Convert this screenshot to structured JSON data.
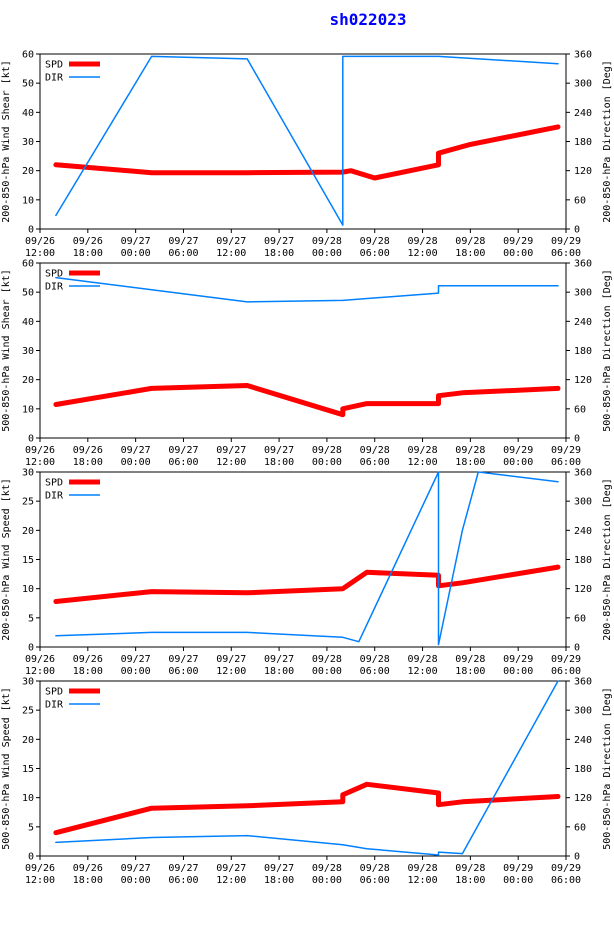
{
  "page": {
    "title": "sh022023"
  },
  "colors": {
    "spd": "#ff0000",
    "dir": "#0080ff",
    "axis": "#000000",
    "title": "#0000ff"
  },
  "chart_data": [
    {
      "type": "line",
      "name": "200-850hPa shear",
      "ylabel_left": "200-850-hPa Wind Shear [kt]",
      "ylabel_right": "200-850-hPa Direction [Deg]",
      "ylim_left": [
        0,
        60
      ],
      "ylim_right": [
        0,
        360
      ],
      "yticks_left": [
        0,
        10,
        20,
        30,
        40,
        50,
        60
      ],
      "yticks_right": [
        0,
        60,
        120,
        180,
        240,
        300,
        360
      ],
      "xlim": [
        0,
        66
      ],
      "x_ticks": [
        0,
        6,
        12,
        18,
        24,
        30,
        36,
        42,
        48,
        54,
        60,
        66
      ],
      "x_ticklabels_top": [
        "09/26",
        "09/26",
        "09/27",
        "09/27",
        "09/27",
        "09/27",
        "09/28",
        "09/28",
        "09/28",
        "09/28",
        "09/29",
        "09/29"
      ],
      "x_ticklabels_bottom": [
        "12:00",
        "18:00",
        "00:00",
        "06:00",
        "12:00",
        "18:00",
        "00:00",
        "06:00",
        "12:00",
        "18:00",
        "00:00",
        "06:00"
      ],
      "legend": [
        "SPD",
        "DIR"
      ],
      "series": [
        {
          "name": "SPD",
          "axis": "left",
          "x": [
            2,
            14,
            26,
            38,
            39,
            42,
            50,
            50,
            54,
            65
          ],
          "values": [
            22,
            19.3,
            19.3,
            19.5,
            20,
            17.5,
            22,
            26,
            29,
            35
          ]
        },
        {
          "name": "DIR",
          "axis": "right",
          "x": [
            2,
            14,
            26,
            38,
            38,
            50,
            65
          ],
          "values": [
            28,
            355,
            350,
            8,
            355,
            355,
            340
          ]
        }
      ]
    },
    {
      "type": "line",
      "name": "500-850hPa shear",
      "ylabel_left": "500-850-hPa Wind Shear [kt]",
      "ylabel_right": "500-850-hPa Direction [Deg]",
      "ylim_left": [
        0,
        60
      ],
      "ylim_right": [
        0,
        360
      ],
      "yticks_left": [
        0,
        10,
        20,
        30,
        40,
        50,
        60
      ],
      "yticks_right": [
        0,
        60,
        120,
        180,
        240,
        300,
        360
      ],
      "xlim": [
        0,
        66
      ],
      "x_ticks": [
        0,
        6,
        12,
        18,
        24,
        30,
        36,
        42,
        48,
        54,
        60,
        66
      ],
      "x_ticklabels_top": [
        "09/26",
        "09/26",
        "09/27",
        "09/27",
        "09/27",
        "09/27",
        "09/28",
        "09/28",
        "09/28",
        "09/28",
        "09/29",
        "09/29"
      ],
      "x_ticklabels_bottom": [
        "12:00",
        "18:00",
        "00:00",
        "06:00",
        "12:00",
        "18:00",
        "00:00",
        "06:00",
        "12:00",
        "18:00",
        "00:00",
        "06:00"
      ],
      "legend": [
        "SPD",
        "DIR"
      ],
      "series": [
        {
          "name": "SPD",
          "axis": "left",
          "x": [
            2,
            14,
            26,
            38,
            38,
            41,
            50,
            50,
            53,
            65
          ],
          "values": [
            11.5,
            17,
            18,
            8,
            10,
            11.8,
            11.8,
            14.5,
            15.5,
            17
          ]
        },
        {
          "name": "DIR",
          "axis": "right",
          "x": [
            2,
            14,
            26,
            38,
            50,
            50,
            65
          ],
          "values": [
            330,
            305,
            280,
            283,
            298,
            313,
            313
          ]
        }
      ]
    },
    {
      "type": "line",
      "name": "200-850hPa wind speed",
      "ylabel_left": "200-850-hPa Wind Speed [kt]",
      "ylabel_right": "200-850-hPa Direction [Deg]",
      "ylim_left": [
        0,
        30
      ],
      "ylim_right": [
        0,
        360
      ],
      "yticks_left": [
        0,
        5,
        10,
        15,
        20,
        25,
        30
      ],
      "yticks_right": [
        0,
        60,
        120,
        180,
        240,
        300,
        360
      ],
      "xlim": [
        0,
        66
      ],
      "x_ticks": [
        0,
        6,
        12,
        18,
        24,
        30,
        36,
        42,
        48,
        54,
        60,
        66
      ],
      "x_ticklabels_top": [
        "09/26",
        "09/26",
        "09/27",
        "09/27",
        "09/27",
        "09/27",
        "09/28",
        "09/28",
        "09/28",
        "09/28",
        "09/29",
        "09/29"
      ],
      "x_ticklabels_bottom": [
        "12:00",
        "18:00",
        "00:00",
        "06:00",
        "12:00",
        "18:00",
        "00:00",
        "06:00",
        "12:00",
        "18:00",
        "00:00",
        "06:00"
      ],
      "legend": [
        "SPD",
        "DIR"
      ],
      "series": [
        {
          "name": "SPD",
          "axis": "left",
          "x": [
            2,
            14,
            26,
            38,
            41,
            50,
            50,
            53,
            65
          ],
          "values": [
            7.8,
            9.5,
            9.3,
            10,
            12.8,
            12.3,
            10.5,
            11,
            13.7
          ]
        },
        {
          "name": "DIR",
          "axis": "right",
          "x": [
            2,
            14,
            26,
            38,
            40,
            50,
            50,
            53,
            55,
            65
          ],
          "values": [
            23,
            30,
            30,
            20,
            11,
            360,
            5,
            240,
            360,
            340
          ]
        }
      ]
    },
    {
      "type": "line",
      "name": "500-850hPa wind speed",
      "ylabel_left": "500-850-hPa Wind Speed [kt]",
      "ylabel_right": "500-850-hPa Direction [Deg]",
      "ylim_left": [
        0,
        30
      ],
      "ylim_right": [
        0,
        360
      ],
      "yticks_left": [
        0,
        5,
        10,
        15,
        20,
        25,
        30
      ],
      "yticks_right": [
        0,
        60,
        120,
        180,
        240,
        300,
        360
      ],
      "xlim": [
        0,
        66
      ],
      "x_ticks": [
        0,
        6,
        12,
        18,
        24,
        30,
        36,
        42,
        48,
        54,
        60,
        66
      ],
      "x_ticklabels_top": [
        "09/26",
        "09/26",
        "09/27",
        "09/27",
        "09/27",
        "09/27",
        "09/28",
        "09/28",
        "09/28",
        "09/28",
        "09/29",
        "09/29"
      ],
      "x_ticklabels_bottom": [
        "12:00",
        "18:00",
        "00:00",
        "06:00",
        "12:00",
        "18:00",
        "00:00",
        "06:00",
        "12:00",
        "18:00",
        "00:00",
        "06:00"
      ],
      "legend": [
        "SPD",
        "DIR"
      ],
      "series": [
        {
          "name": "SPD",
          "axis": "left",
          "x": [
            2,
            14,
            26,
            38,
            38,
            41,
            50,
            50,
            53,
            65
          ],
          "values": [
            4,
            8.2,
            8.6,
            9.3,
            10.5,
            12.3,
            10.8,
            8.8,
            9.3,
            10.2
          ]
        },
        {
          "name": "DIR",
          "axis": "right",
          "x": [
            2,
            14,
            26,
            38,
            41,
            50,
            50,
            53,
            65
          ],
          "values": [
            28,
            38,
            42,
            23,
            15,
            2,
            8,
            5,
            360
          ]
        }
      ]
    }
  ]
}
